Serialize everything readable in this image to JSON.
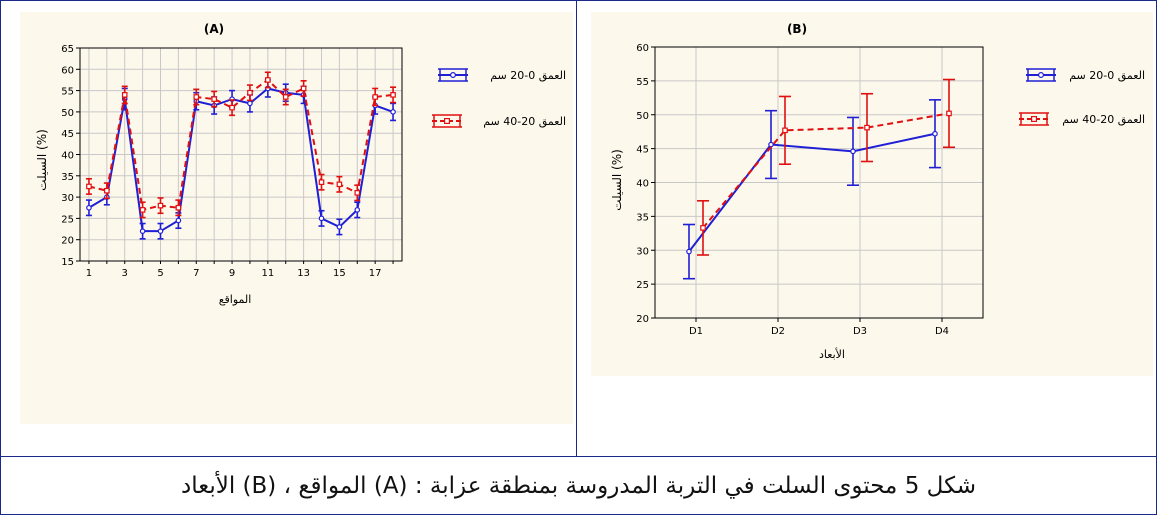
{
  "caption": "شكل 5  محتوى السلت في التربة المدروسة بمنطقة عزابة : (A) المواقع ، (B) الأبعاد",
  "colors": {
    "series1": "#1f1fd6",
    "series2": "#e01010",
    "panel_bg": "#fdf8ec",
    "grid": "#c8c8c8"
  },
  "chart_data": [
    {
      "type": "line",
      "title": "(A)",
      "xlabel": "المواقع",
      "ylabel": "السيلت (%)",
      "x": [
        1,
        2,
        3,
        4,
        5,
        6,
        7,
        8,
        9,
        10,
        11,
        12,
        13,
        14,
        15,
        16,
        17,
        18
      ],
      "xticks": [
        "1",
        "3",
        "5",
        "7",
        "9",
        "11",
        "13",
        "15",
        "17"
      ],
      "xlim": [
        0.5,
        18.5
      ],
      "ylim": [
        15,
        65
      ],
      "yticks": [
        "15",
        "20",
        "25",
        "30",
        "35",
        "40",
        "45",
        "50",
        "55",
        "60",
        "65"
      ],
      "grid": true,
      "legend_position": "right",
      "series": [
        {
          "name": "العمق 0-20 سم",
          "style": "solid",
          "values": [
            27.5,
            30.0,
            53.0,
            22.0,
            22.0,
            24.5,
            52.5,
            51.5,
            53.0,
            52.0,
            55.5,
            54.5,
            54.0,
            25.0,
            23.0,
            27.0,
            51.5,
            50.0
          ],
          "error": [
            1.8,
            1.8,
            2.5,
            1.8,
            1.8,
            1.8,
            2.0,
            2.0,
            2.0,
            2.0,
            2.0,
            2.0,
            2.0,
            1.8,
            1.8,
            1.8,
            2.0,
            2.0
          ]
        },
        {
          "name": "العمق 20-40 سم",
          "style": "dashed",
          "values": [
            32.5,
            31.5,
            54.0,
            27.0,
            28.0,
            27.5,
            53.5,
            53.0,
            51.0,
            54.5,
            57.5,
            53.5,
            55.5,
            33.5,
            33.0,
            31.0,
            53.5,
            54.0
          ],
          "error": [
            1.8,
            1.8,
            2.0,
            1.8,
            1.8,
            1.8,
            1.8,
            1.8,
            1.8,
            1.8,
            1.8,
            1.8,
            1.8,
            1.8,
            1.8,
            1.8,
            2.0,
            1.8
          ]
        }
      ]
    },
    {
      "type": "line",
      "title": "(B)",
      "xlabel": "الأبعاد",
      "ylabel": "السيلت (%)",
      "categories": [
        "D1",
        "D2",
        "D3",
        "D4"
      ],
      "ylim": [
        20,
        60
      ],
      "yticks": [
        "20",
        "25",
        "30",
        "35",
        "40",
        "45",
        "50",
        "55",
        "60"
      ],
      "grid": true,
      "legend_position": "right",
      "series": [
        {
          "name": "العمق 0-20 سم",
          "style": "solid",
          "values": [
            29.8,
            45.6,
            44.6,
            47.2
          ],
          "error": [
            4.0,
            5.0,
            5.0,
            5.0
          ]
        },
        {
          "name": "العمق 20-40 سم",
          "style": "dashed",
          "values": [
            33.3,
            47.7,
            48.1,
            50.2
          ],
          "error": [
            4.0,
            5.0,
            5.0,
            5.0
          ]
        }
      ]
    }
  ]
}
